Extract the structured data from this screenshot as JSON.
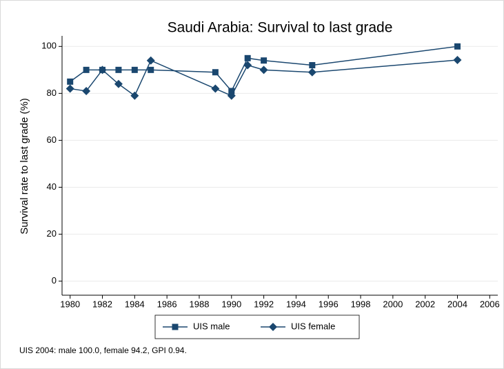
{
  "chart_data": {
    "type": "line",
    "title": "Saudi Arabia: Survival to last grade",
    "y_label": "Survival rate to last grade (%)",
    "note": "UIS 2004: male 100.0, female 94.2, GPI 0.94.",
    "x": [
      1980,
      1981,
      1982,
      1983,
      1984,
      1985,
      1989,
      1990,
      1991,
      1992,
      1995,
      2004
    ],
    "series": [
      {
        "name": "UIS male",
        "color": "#1a476f",
        "marker": "square",
        "values": [
          85,
          90,
          90,
          90,
          90,
          90,
          89,
          81,
          95,
          94,
          92,
          100
        ]
      },
      {
        "name": "UIS female",
        "color": "#1a476f",
        "marker": "diamond",
        "values": [
          82,
          81,
          90,
          84,
          79,
          94,
          82,
          79,
          92,
          90,
          89,
          94.2
        ]
      }
    ],
    "xlim": [
      1979.5,
      2006.5
    ],
    "xticks": [
      1980,
      1982,
      1984,
      1986,
      1988,
      1990,
      1992,
      1994,
      1996,
      1998,
      2000,
      2002,
      2004,
      2006
    ],
    "ylim": [
      -6,
      104.5
    ],
    "yticks": [
      0,
      20,
      40,
      60,
      80,
      100
    ],
    "grid": true
  }
}
